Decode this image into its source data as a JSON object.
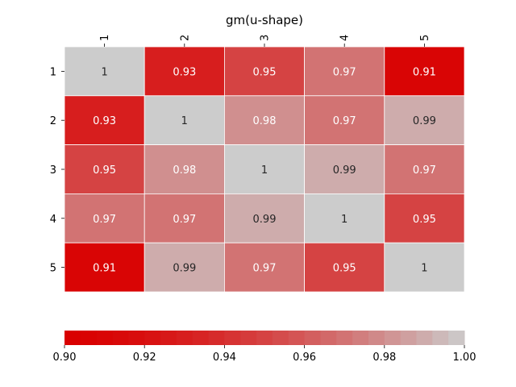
{
  "chart_data": {
    "type": "heatmap",
    "title": "gm(u-shape)",
    "row_labels": [
      "1",
      "2",
      "3",
      "4",
      "5"
    ],
    "col_labels": [
      "1",
      "2",
      "3",
      "4",
      "5"
    ],
    "values": [
      [
        1,
        0.93,
        0.95,
        0.97,
        0.91
      ],
      [
        0.93,
        1,
        0.98,
        0.97,
        0.99
      ],
      [
        0.95,
        0.98,
        1,
        0.99,
        0.97
      ],
      [
        0.97,
        0.97,
        0.99,
        1,
        0.95
      ],
      [
        0.91,
        0.99,
        0.97,
        0.95,
        1
      ]
    ],
    "colorbar": {
      "range": [
        0.9,
        1.0
      ],
      "ticks": [
        0.9,
        0.92,
        0.94,
        0.96,
        0.98,
        1.0
      ],
      "tick_labels": [
        "0.90",
        "0.92",
        "0.94",
        "0.96",
        "0.98",
        "1.00"
      ],
      "orientation": "horizontal",
      "placement": "bottom"
    },
    "colors": {
      "low": "#d90000",
      "high": "#cccccc",
      "text_dark": "#262626",
      "text_light": "#ffffff"
    }
  }
}
